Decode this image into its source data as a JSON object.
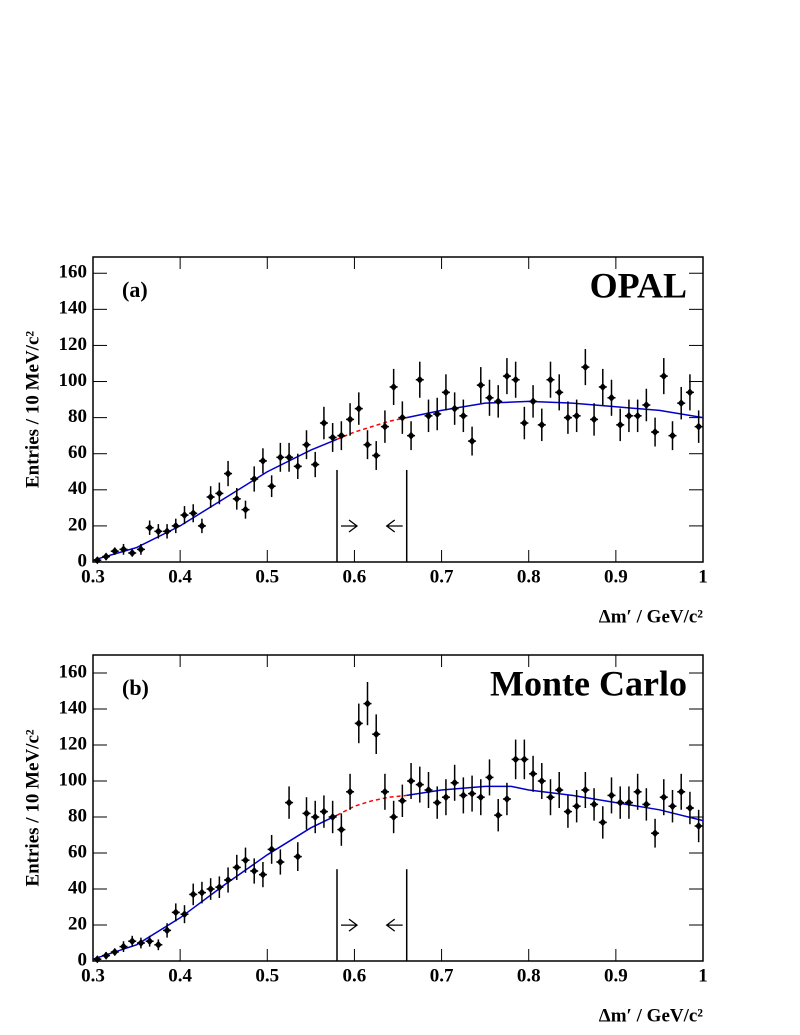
{
  "chart_data": [
    {
      "type": "errorbar",
      "label": "(a)",
      "title": "OPAL",
      "xlabel": "Δm′ / GeV/c²",
      "ylabel": "Entries / 10 MeV/c²",
      "xlim": [
        0.3,
        1
      ],
      "ylim": [
        0,
        169
      ],
      "xticks": [
        0.3,
        0.4,
        0.5,
        0.6,
        0.7,
        0.8,
        0.9,
        1
      ],
      "yticks": [
        0,
        20,
        40,
        60,
        80,
        100,
        120,
        140,
        160
      ],
      "color": "#000000",
      "x": [
        0.305,
        0.315,
        0.325,
        0.335,
        0.345,
        0.355,
        0.365,
        0.375,
        0.385,
        0.395,
        0.405,
        0.415,
        0.425,
        0.435,
        0.445,
        0.455,
        0.465,
        0.475,
        0.485,
        0.495,
        0.505,
        0.515,
        0.525,
        0.535,
        0.545,
        0.555,
        0.565,
        0.575,
        0.585,
        0.595,
        0.605,
        0.615,
        0.625,
        0.635,
        0.645,
        0.655,
        0.665,
        0.675,
        0.685,
        0.695,
        0.705,
        0.715,
        0.725,
        0.735,
        0.745,
        0.755,
        0.765,
        0.775,
        0.785,
        0.795,
        0.805,
        0.815,
        0.825,
        0.835,
        0.845,
        0.855,
        0.865,
        0.875,
        0.885,
        0.895,
        0.905,
        0.915,
        0.925,
        0.935,
        0.945,
        0.955,
        0.965,
        0.975,
        0.985,
        0.995
      ],
      "values": [
        1,
        3,
        6,
        7,
        5,
        7,
        19,
        17,
        17,
        20,
        26,
        27,
        20,
        36,
        38,
        49,
        35,
        29,
        46,
        56,
        42,
        58,
        58,
        53,
        65,
        54,
        77,
        69,
        70,
        79,
        85,
        65,
        59,
        75,
        97,
        80,
        70,
        101,
        81,
        82,
        94,
        85,
        81,
        67,
        98,
        91,
        89,
        103,
        101,
        77,
        89,
        76,
        101,
        94,
        80,
        81,
        108,
        79,
        97,
        91,
        76,
        81,
        81,
        87,
        72,
        103,
        70,
        88,
        94,
        75
      ],
      "errors": [
        1,
        2,
        2,
        3,
        2,
        3,
        4,
        4,
        4,
        4,
        5,
        5,
        4,
        6,
        6,
        7,
        6,
        5,
        7,
        7,
        6,
        8,
        8,
        7,
        8,
        7,
        9,
        8,
        8,
        9,
        9,
        8,
        8,
        9,
        10,
        9,
        8,
        10,
        9,
        9,
        10,
        9,
        9,
        8,
        10,
        10,
        9,
        10,
        10,
        9,
        9,
        9,
        10,
        10,
        9,
        9,
        10,
        9,
        10,
        10,
        9,
        9,
        9,
        9,
        8,
        10,
        8,
        9,
        10,
        9
      ],
      "fit": [
        {
          "color": "#0000cc",
          "dash": false,
          "x": [
            0.3,
            0.35,
            0.4,
            0.45,
            0.5,
            0.55,
            0.58
          ],
          "values": [
            1,
            8,
            20,
            35,
            50,
            62,
            68
          ]
        },
        {
          "color": "#ff0000",
          "dash": true,
          "x": [
            0.58,
            0.6,
            0.62,
            0.64,
            0.66
          ],
          "values": [
            68,
            72,
            75,
            78,
            80
          ]
        },
        {
          "color": "#0000cc",
          "dash": false,
          "x": [
            0.66,
            0.7,
            0.75,
            0.8,
            0.85,
            0.9,
            0.95,
            1
          ],
          "values": [
            80,
            84,
            88,
            89,
            88,
            86,
            84,
            80
          ]
        }
      ],
      "cut_lines": [
        0.58,
        0.66
      ],
      "cut_line_top": 51
    },
    {
      "type": "errorbar",
      "label": "(b)",
      "title": "Monte Carlo",
      "xlabel": "Δm′ / GeV/c²",
      "ylabel": "Entries / 10 MeV/c²",
      "xlim": [
        0.3,
        1
      ],
      "ylim": [
        0,
        170
      ],
      "xticks": [
        0.3,
        0.4,
        0.5,
        0.6,
        0.7,
        0.8,
        0.9,
        1
      ],
      "yticks": [
        0,
        20,
        40,
        60,
        80,
        100,
        120,
        140,
        160
      ],
      "color": "#000000",
      "x": [
        0.305,
        0.315,
        0.325,
        0.335,
        0.345,
        0.355,
        0.365,
        0.375,
        0.385,
        0.395,
        0.405,
        0.415,
        0.425,
        0.435,
        0.445,
        0.455,
        0.465,
        0.475,
        0.485,
        0.495,
        0.505,
        0.515,
        0.525,
        0.535,
        0.545,
        0.555,
        0.565,
        0.575,
        0.585,
        0.595,
        0.605,
        0.615,
        0.625,
        0.635,
        0.645,
        0.655,
        0.665,
        0.675,
        0.685,
        0.695,
        0.705,
        0.715,
        0.725,
        0.735,
        0.745,
        0.755,
        0.765,
        0.775,
        0.785,
        0.795,
        0.805,
        0.815,
        0.825,
        0.835,
        0.845,
        0.855,
        0.865,
        0.875,
        0.885,
        0.895,
        0.905,
        0.915,
        0.925,
        0.935,
        0.945,
        0.955,
        0.965,
        0.975,
        0.985,
        0.995
      ],
      "values": [
        1,
        3,
        5,
        8,
        11,
        10,
        11,
        9,
        17,
        27,
        26,
        37,
        38,
        40,
        41,
        45,
        52,
        56,
        50,
        48,
        62,
        55,
        88,
        58,
        82,
        80,
        83,
        80,
        73,
        94,
        132,
        143,
        126,
        94,
        80,
        89,
        100,
        98,
        95,
        88,
        91,
        99,
        92,
        93,
        91,
        102,
        81,
        90,
        112,
        112,
        104,
        100,
        91,
        95,
        83,
        86,
        95,
        87,
        77,
        92,
        88,
        88,
        94,
        87,
        71,
        91,
        86,
        94,
        85,
        75
      ],
      "errors": [
        1,
        2,
        2,
        3,
        3,
        3,
        3,
        3,
        4,
        5,
        5,
        6,
        6,
        6,
        6,
        7,
        7,
        7,
        7,
        7,
        8,
        7,
        9,
        8,
        9,
        9,
        9,
        9,
        9,
        10,
        11,
        12,
        11,
        10,
        9,
        9,
        10,
        10,
        10,
        9,
        10,
        10,
        10,
        10,
        10,
        10,
        9,
        9,
        11,
        11,
        10,
        10,
        10,
        10,
        9,
        9,
        10,
        9,
        9,
        10,
        9,
        9,
        10,
        9,
        8,
        10,
        9,
        10,
        9,
        9
      ],
      "fit": [
        {
          "color": "#0000cc",
          "dash": false,
          "x": [
            0.3,
            0.35,
            0.4,
            0.45,
            0.5,
            0.55,
            0.58
          ],
          "values": [
            1,
            9,
            24,
            42,
            59,
            74,
            81
          ]
        },
        {
          "color": "#ff0000",
          "dash": true,
          "x": [
            0.58,
            0.6,
            0.62,
            0.64,
            0.66
          ],
          "values": [
            81,
            86,
            89,
            91,
            92
          ]
        },
        {
          "color": "#0000cc",
          "dash": false,
          "x": [
            0.66,
            0.7,
            0.75,
            0.78,
            0.8,
            0.85,
            0.9,
            0.95,
            1
          ],
          "values": [
            92,
            95,
            97,
            97,
            95,
            92,
            88,
            84,
            78
          ]
        }
      ],
      "cut_lines": [
        0.58,
        0.66
      ],
      "cut_line_top": 51
    }
  ]
}
